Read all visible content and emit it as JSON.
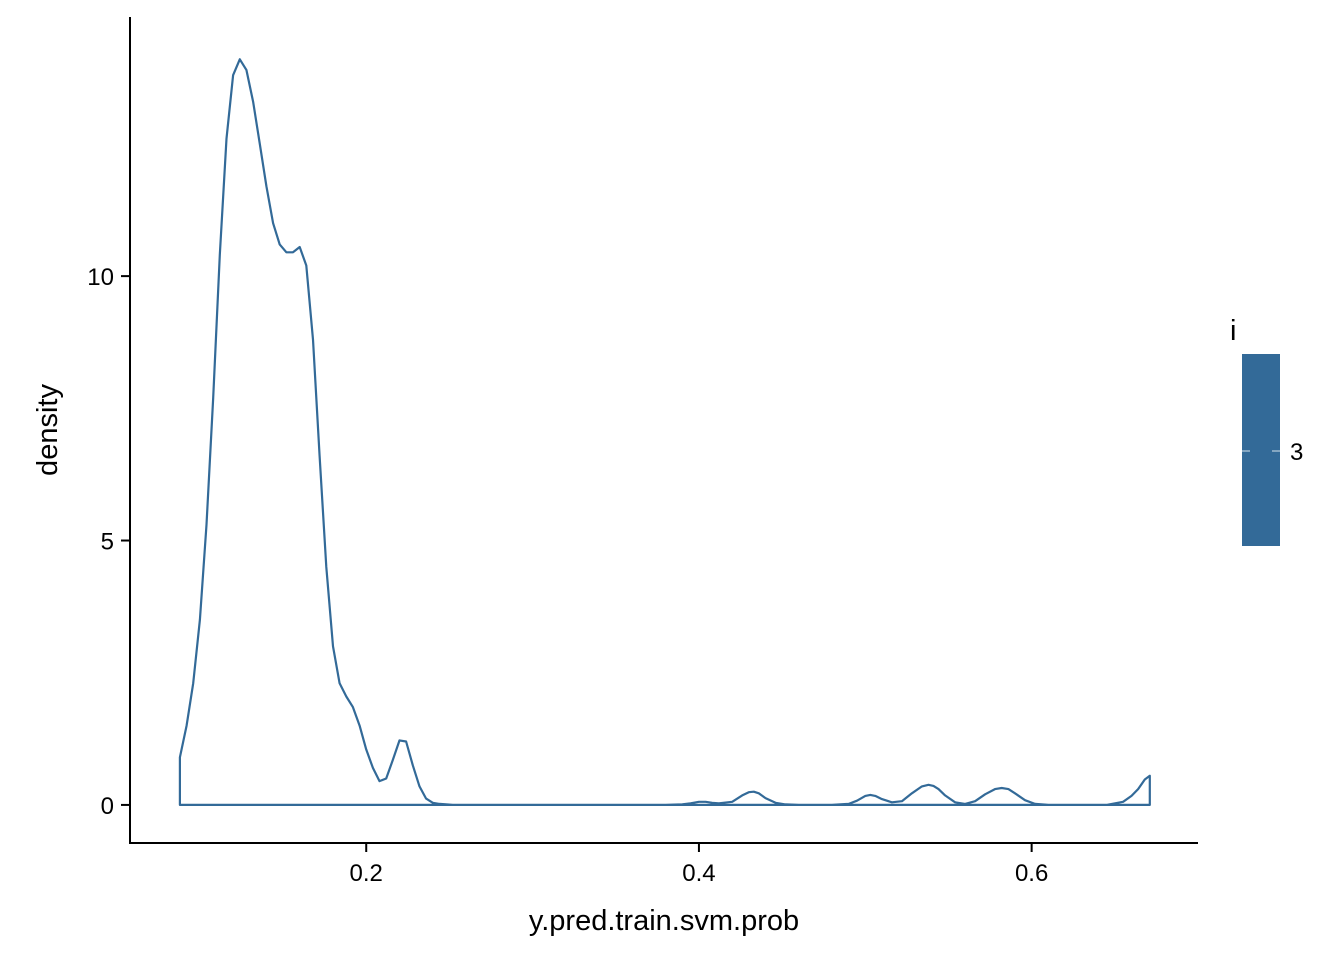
{
  "chart_data": {
    "type": "area",
    "title": "",
    "xlabel": "y.pred.train.svm.prob",
    "ylabel": "density",
    "xlim": [
      0.058,
      0.7
    ],
    "ylim": [
      -0.72,
      14.9
    ],
    "x_ticks": [
      0.2,
      0.4,
      0.6
    ],
    "x_tick_labels": [
      "0.2",
      "0.4",
      "0.6"
    ],
    "y_ticks": [
      0,
      5,
      10
    ],
    "y_tick_labels": [
      "0",
      "5",
      "10"
    ],
    "grid": false,
    "legend": {
      "title": "i",
      "placement": "right",
      "labels": [
        "3"
      ],
      "color": "#336a98"
    },
    "series": [
      {
        "color": "#336a98",
        "x": [
          0.088,
          0.092,
          0.096,
          0.1,
          0.104,
          0.108,
          0.112,
          0.116,
          0.12,
          0.124,
          0.128,
          0.132,
          0.136,
          0.14,
          0.144,
          0.148,
          0.152,
          0.156,
          0.16,
          0.164,
          0.168,
          0.172,
          0.176,
          0.18,
          0.184,
          0.188,
          0.192,
          0.196,
          0.2,
          0.204,
          0.208,
          0.212,
          0.216,
          0.22,
          0.224,
          0.228,
          0.232,
          0.236,
          0.24,
          0.244,
          0.248,
          0.252,
          0.256,
          0.262,
          0.27,
          0.3,
          0.35,
          0.38,
          0.39,
          0.395,
          0.4,
          0.404,
          0.408,
          0.412,
          0.42,
          0.426,
          0.43,
          0.433,
          0.436,
          0.44,
          0.446,
          0.452,
          0.46,
          0.48,
          0.49,
          0.495,
          0.5,
          0.503,
          0.506,
          0.51,
          0.516,
          0.522,
          0.528,
          0.534,
          0.538,
          0.541,
          0.544,
          0.548,
          0.554,
          0.56,
          0.566,
          0.572,
          0.578,
          0.582,
          0.586,
          0.59,
          0.596,
          0.602,
          0.61,
          0.63,
          0.645,
          0.655,
          0.66,
          0.664,
          0.668,
          0.671
        ],
        "y": [
          0.9,
          1.5,
          2.3,
          3.5,
          5.3,
          7.7,
          10.4,
          12.6,
          13.8,
          14.1,
          13.9,
          13.3,
          12.5,
          11.7,
          11.0,
          10.6,
          10.45,
          10.45,
          10.55,
          10.2,
          8.8,
          6.6,
          4.5,
          3.0,
          2.3,
          2.05,
          1.85,
          1.5,
          1.05,
          0.7,
          0.45,
          0.5,
          0.85,
          1.22,
          1.2,
          0.75,
          0.35,
          0.12,
          0.04,
          0.02,
          0.01,
          0.0,
          0.0,
          0.0,
          0.0,
          0.0,
          0.0,
          0.0,
          0.01,
          0.03,
          0.06,
          0.06,
          0.04,
          0.03,
          0.06,
          0.18,
          0.24,
          0.25,
          0.22,
          0.13,
          0.04,
          0.01,
          0.0,
          0.0,
          0.02,
          0.08,
          0.17,
          0.19,
          0.17,
          0.11,
          0.05,
          0.07,
          0.22,
          0.35,
          0.38,
          0.36,
          0.3,
          0.18,
          0.05,
          0.02,
          0.07,
          0.2,
          0.3,
          0.32,
          0.3,
          0.22,
          0.09,
          0.02,
          0.0,
          0.0,
          0.0,
          0.06,
          0.17,
          0.3,
          0.48,
          0.55
        ]
      }
    ]
  }
}
